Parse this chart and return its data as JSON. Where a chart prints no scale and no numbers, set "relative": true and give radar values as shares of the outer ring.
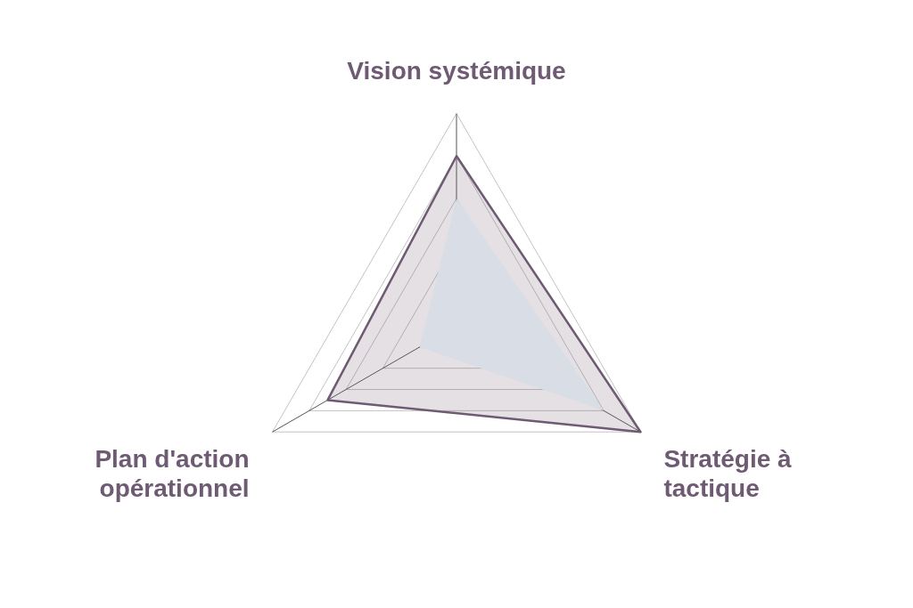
{
  "chart_data": {
    "type": "radar",
    "categories": [
      "Vision systémique",
      "Stratégie à tactique",
      "Plan d'action opérationnel"
    ],
    "relative": true,
    "grid": true,
    "marker": "none",
    "line_style": "solid",
    "series": [
      {
        "type": "area",
        "color": "#d8dde6",
        "values": [
          0.6,
          0.8,
          0.2
        ]
      },
      {
        "color": "#6e5a72",
        "values": [
          0.8,
          1,
          0.7
        ]
      }
    ]
  }
}
